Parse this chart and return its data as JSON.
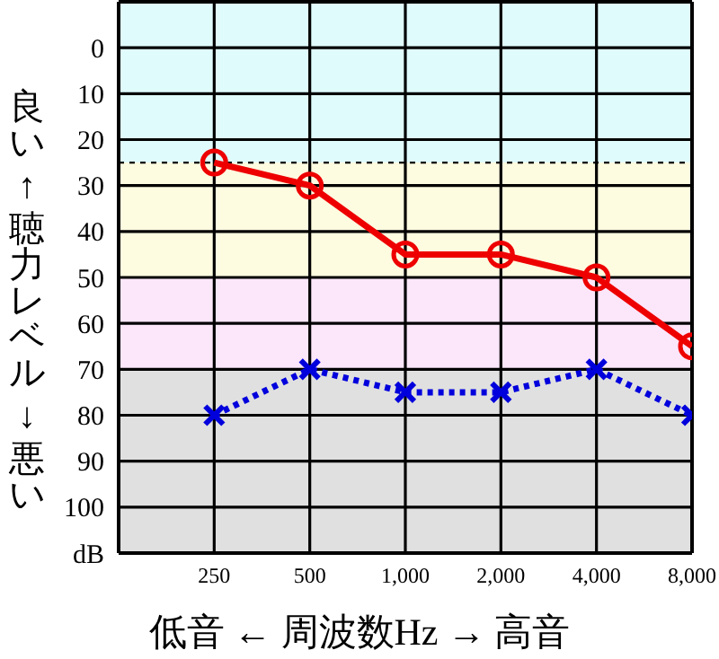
{
  "chart_data": {
    "type": "line",
    "xlabel": "低音 ← 周波数Hz → 高音",
    "ylabel": "良い ↑ 聴力レベル ↓ 悪い",
    "x": [
      250,
      500,
      1000,
      2000,
      4000,
      8000
    ],
    "log": "x",
    "xlim": [
      125,
      8000
    ],
    "xticks": [
      {
        "value": 250,
        "label": "250"
      },
      {
        "value": 500,
        "label": "500"
      },
      {
        "value": 1000,
        "label": "1,000"
      },
      {
        "value": 2000,
        "label": "2,000"
      },
      {
        "value": 4000,
        "label": "4,000"
      },
      {
        "value": 8000,
        "label": "8,000"
      }
    ],
    "ylim": [
      110,
      -10
    ],
    "yticks": [
      {
        "value": -10,
        "label": null
      },
      0,
      10,
      20,
      30,
      40,
      50,
      60,
      70,
      80,
      90,
      100,
      {
        "value": 110,
        "label": "dB"
      }
    ],
    "grid": true,
    "series": [
      {
        "color": "#ee0000",
        "values": [
          25,
          30,
          45,
          45,
          50,
          65
        ],
        "marker": "circle",
        "line_style": "solid"
      },
      {
        "color": "#0000dd",
        "values": [
          80,
          70,
          75,
          75,
          70,
          80
        ],
        "marker": "cross",
        "line_style": "dotted"
      }
    ],
    "bands": [
      {
        "axis": "y",
        "from": -10,
        "to": 25,
        "color": "#e0fbfc"
      },
      {
        "axis": "y",
        "from": 25,
        "to": 50,
        "color": "#fdfbe0"
      },
      {
        "axis": "y",
        "from": 50,
        "to": 70,
        "color": "#fbe6fa"
      },
      {
        "axis": "y",
        "from": 70,
        "to": 110,
        "color": "#e0e0e0"
      }
    ],
    "ref_lines": [
      {
        "axis": "y",
        "value": 25,
        "color": "#000000",
        "line_style": "dotted"
      }
    ]
  }
}
